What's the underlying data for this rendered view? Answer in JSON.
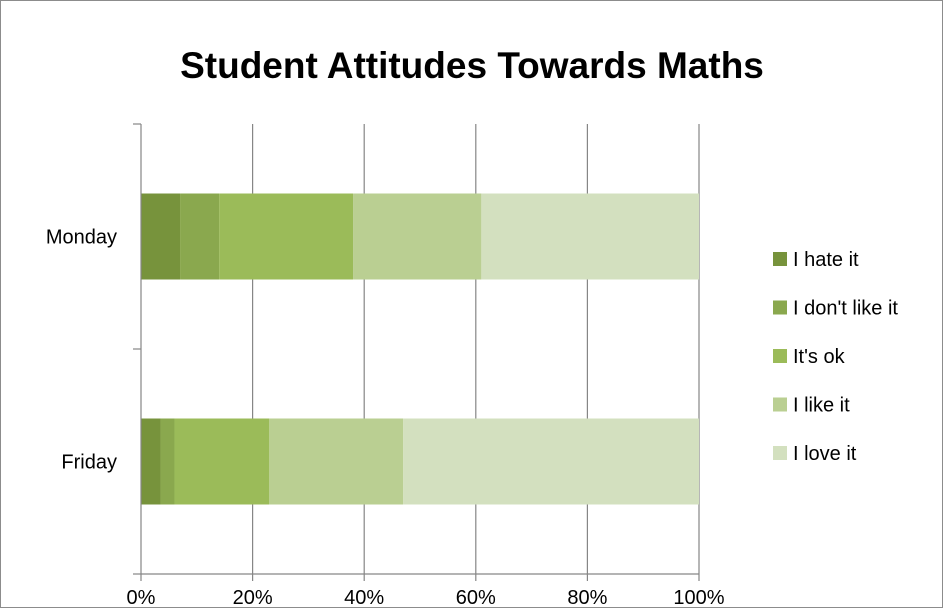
{
  "chart_data": {
    "type": "bar",
    "orientation": "horizontal",
    "stacked": "percent",
    "title": "Student Attitudes Towards Maths",
    "categories": [
      "Monday",
      "Friday"
    ],
    "series": [
      {
        "name": "I hate it",
        "values": [
          7,
          3.5
        ],
        "color": "#77933c"
      },
      {
        "name": "I don't like it",
        "values": [
          7,
          2.5
        ],
        "color": "#8aa84e"
      },
      {
        "name": "It's ok",
        "values": [
          24,
          17
        ],
        "color": "#9bbb59"
      },
      {
        "name": "I like it",
        "values": [
          23,
          24
        ],
        "color": "#bacf92"
      },
      {
        "name": "I love it",
        "values": [
          39,
          53
        ],
        "color": "#d3e0bf"
      }
    ],
    "x_ticks": [
      "0%",
      "20%",
      "40%",
      "60%",
      "80%",
      "100%"
    ],
    "xlim": [
      0,
      100
    ],
    "grid": true,
    "legend_position": "right"
  }
}
